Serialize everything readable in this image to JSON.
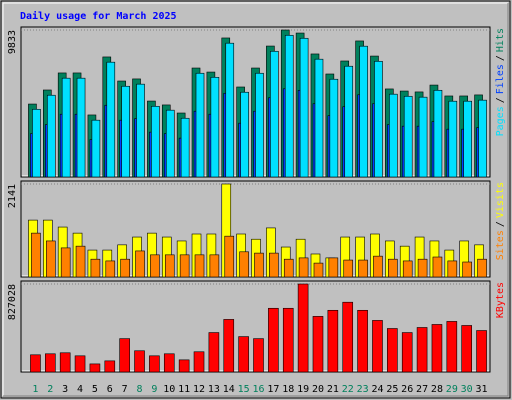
{
  "chart_data": [
    {
      "type": "bar",
      "title": "Daily usage for March 2025",
      "title_color": "#0000ff",
      "ylim": [
        0,
        9833
      ],
      "yticks": [
        9833
      ],
      "legend_separator": "/",
      "series": [
        {
          "name": "Hits",
          "color": "#00805c",
          "values": [
            4880,
            5820,
            6960,
            6960,
            4150,
            8030,
            6420,
            6560,
            5080,
            4820,
            4280,
            7290,
            7020,
            9300,
            6020,
            7290,
            8760,
            9833,
            9630,
            8230,
            6890,
            7760,
            9100,
            8090,
            5890,
            5750,
            5690,
            6150,
            5420,
            5420,
            5490
          ]
        },
        {
          "name": "Files",
          "color": "#0040ff",
          "values": [
            2900,
            3500,
            4200,
            4200,
            2500,
            4800,
            3800,
            3900,
            3000,
            2900,
            2600,
            4400,
            4200,
            5600,
            3600,
            4400,
            5300,
            5900,
            5800,
            4900,
            4100,
            4700,
            5500,
            4900,
            3500,
            3400,
            3400,
            3700,
            3200,
            3200,
            3300
          ]
        },
        {
          "name": "Pages",
          "color": "#00e0ff",
          "values": [
            4530,
            5470,
            6610,
            6610,
            3800,
            7680,
            6070,
            6210,
            4730,
            4470,
            3930,
            6940,
            6670,
            8950,
            5670,
            6940,
            8410,
            9480,
            9280,
            7880,
            6540,
            7410,
            8750,
            7740,
            5540,
            5400,
            5340,
            5800,
            5070,
            5070,
            5140
          ]
        }
      ]
    },
    {
      "type": "bar",
      "ylim": [
        0,
        2141
      ],
      "yticks": [
        2141
      ],
      "legend_separator": "/",
      "series": [
        {
          "name": "Visits",
          "color": "#ffff00",
          "values": [
            1310,
            1310,
            1150,
            1010,
            620,
            620,
            740,
            920,
            1010,
            920,
            830,
            990,
            990,
            2141,
            990,
            870,
            1130,
            690,
            870,
            530,
            440,
            920,
            920,
            990,
            830,
            710,
            920,
            830,
            620,
            830,
            740
          ]
        },
        {
          "name": "Sites",
          "color": "#ff8000",
          "values": [
            1010,
            830,
            670,
            710,
            410,
            370,
            410,
            600,
            510,
            510,
            510,
            510,
            510,
            940,
            580,
            550,
            550,
            410,
            440,
            320,
            440,
            390,
            390,
            480,
            410,
            370,
            410,
            460,
            370,
            345,
            410
          ]
        }
      ]
    },
    {
      "type": "bar",
      "ylim": [
        0,
        827028
      ],
      "yticks": [
        827028
      ],
      "categories": [
        "1",
        "2",
        "3",
        "4",
        "5",
        "6",
        "7",
        "8",
        "9",
        "10",
        "11",
        "12",
        "13",
        "14",
        "15",
        "16",
        "17",
        "18",
        "19",
        "20",
        "21",
        "22",
        "23",
        "24",
        "25",
        "26",
        "27",
        "28",
        "29",
        "30",
        "31"
      ],
      "category_label_colors": [
        "#00805c",
        "#00805c",
        "#000000",
        "#000000",
        "#000000",
        "#000000",
        "#000000",
        "#00805c",
        "#00805c",
        "#000000",
        "#000000",
        "#000000",
        "#000000",
        "#000000",
        "#00805c",
        "#00805c",
        "#000000",
        "#000000",
        "#000000",
        "#000000",
        "#000000",
        "#00805c",
        "#00805c",
        "#000000",
        "#000000",
        "#000000",
        "#000000",
        "#000000",
        "#00805c",
        "#00805c",
        "#000000"
      ],
      "series": [
        {
          "name": "KBytes",
          "color": "#ff0000",
          "values": [
            161600,
            171100,
            180600,
            152100,
            76000,
            104600,
            313700,
            199600,
            152100,
            171100,
            114100,
            190100,
            370700,
            494300,
            332700,
            313700,
            598900,
            598900,
            827028,
            522800,
            579900,
            655900,
            579900,
            484800,
            408800,
            370700,
            418300,
            446800,
            475300,
            437300,
            389800
          ]
        }
      ]
    }
  ]
}
